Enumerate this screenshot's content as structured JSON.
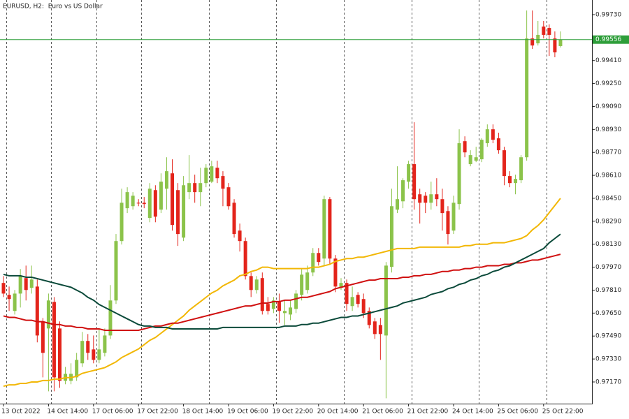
{
  "chart_data": {
    "type": "candlestick",
    "title": "EURUSD, H2:  Euro vs US Dollar",
    "categories": [
      "13 Oct 2022",
      null,
      null,
      null,
      null,
      null,
      null,
      null,
      "14 Oct 14:00",
      null,
      null,
      null,
      null,
      null,
      null,
      null,
      "17 Oct 06:00",
      null,
      null,
      null,
      null,
      null,
      null,
      null,
      "17 Oct 22:00",
      null,
      null,
      null,
      null,
      null,
      null,
      null,
      "18 Oct 14:00",
      null,
      null,
      null,
      null,
      null,
      null,
      null,
      "19 Oct 06:00",
      null,
      null,
      null,
      null,
      null,
      null,
      null,
      "19 Oct 22:00",
      null,
      null,
      null,
      null,
      null,
      null,
      null,
      "20 Oct 14:00",
      null,
      null,
      null,
      null,
      null,
      null,
      null,
      "21 Oct 06:00",
      null,
      null,
      null,
      null,
      null,
      null,
      null,
      "21 Oct 22:00",
      null,
      null,
      null,
      null,
      null,
      null,
      null,
      "24 Oct 14:00",
      null,
      null,
      null,
      null,
      null,
      null,
      null,
      "25 Oct 06:00",
      null,
      null,
      null,
      null,
      null,
      null,
      null,
      "25 Oct 22:00",
      null,
      null,
      null
    ],
    "open": [
      0.9786,
      0.97777,
      0.97665,
      0.97786,
      0.97894,
      0.97826,
      0.97835,
      0.97592,
      0.97543,
      0.97728,
      0.97543,
      0.97178,
      0.97178,
      0.97202,
      0.973,
      0.97456,
      0.97397,
      0.97324,
      0.97373,
      0.97494,
      0.97738,
      0.98152,
      0.98381,
      0.98395,
      0.98419,
      0.98419,
      0.98313,
      0.98507,
      0.98371,
      0.98517,
      0.98624,
      0.98507,
      0.98176,
      0.98493,
      0.98556,
      0.98493,
      0.98556,
      0.98566,
      0.98663,
      0.98605,
      0.98527,
      0.98419,
      0.98225,
      0.98152,
      0.97908,
      0.97811,
      0.97894,
      0.97714,
      0.97679,
      0.97728,
      0.9765,
      0.9764,
      0.97679,
      0.97777,
      0.97811,
      0.97933,
      0.98069,
      0.9803,
      0.98444,
      0.9803,
      0.97826,
      0.9786,
      0.97699,
      0.97777,
      0.97748,
      0.97665,
      0.97592,
      0.97567,
      0.97494,
      0.97972,
      0.98371,
      0.98429,
      0.98566,
      0.98688,
      0.98478,
      0.98468,
      0.98419,
      0.98478,
      0.98444,
      0.98361,
      0.98225,
      0.9841,
      0.98848,
      0.98688,
      0.98712,
      0.98722,
      0.98834,
      0.98931,
      0.98868,
      0.98785,
      0.98605,
      0.98556,
      0.98576,
      0.98736,
      0.99564,
      0.9953,
      0.99647,
      0.99637,
      0.99564,
      0.99511
    ],
    "high": [
      0.97908,
      0.97835,
      0.97811,
      0.97957,
      0.97981,
      0.97981,
      0.97884,
      0.97616,
      0.97786,
      0.97762,
      0.97592,
      0.97275,
      0.973,
      0.97373,
      0.97519,
      0.97504,
      0.97494,
      0.97543,
      0.97543,
      0.97845,
      0.98201,
      0.98517,
      0.98527,
      0.98493,
      0.98444,
      0.98459,
      0.98556,
      0.98541,
      0.98624,
      0.98736,
      0.98722,
      0.98556,
      0.98605,
      0.98751,
      0.98615,
      0.98663,
      0.98688,
      0.98712,
      0.98712,
      0.98639,
      0.98556,
      0.98444,
      0.98274,
      0.98176,
      0.97933,
      0.97908,
      0.97933,
      0.97762,
      0.97762,
      0.97786,
      0.97738,
      0.97738,
      0.97811,
      0.97957,
      0.97981,
      0.98103,
      0.98103,
      0.98468,
      0.98459,
      0.98055,
      0.97894,
      0.97884,
      0.97835,
      0.97796,
      0.97786,
      0.97689,
      0.97616,
      0.97616,
      0.98006,
      0.98517,
      0.98673,
      0.9859,
      0.98712,
      0.9898,
      0.98517,
      0.98493,
      0.98566,
      0.9859,
      0.98517,
      0.98395,
      0.98468,
      0.98931,
      0.98882,
      0.98785,
      0.98809,
      0.98868,
      0.98965,
      0.98965,
      0.98907,
      0.98809,
      0.98639,
      0.98615,
      0.98751,
      0.99759,
      0.99759,
      0.99686,
      0.99686,
      0.99662,
      0.99613,
      0.99613
    ],
    "low": [
      0.97762,
      0.97665,
      0.9764,
      0.97689,
      0.97738,
      0.97786,
      0.97446,
      0.97202,
      0.97105,
      0.97105,
      0.97129,
      0.97154,
      0.97154,
      0.97178,
      0.97275,
      0.97324,
      0.973,
      0.973,
      0.97348,
      0.9747,
      0.97714,
      0.98128,
      0.98347,
      0.98371,
      0.98395,
      0.98381,
      0.98283,
      0.98283,
      0.98347,
      0.98371,
      0.98225,
      0.98118,
      0.98152,
      0.98444,
      0.98419,
      0.98395,
      0.98527,
      0.98556,
      0.98556,
      0.98395,
      0.98371,
      0.98176,
      0.98079,
      0.97884,
      0.97762,
      0.97786,
      0.9764,
      0.9764,
      0.9765,
      0.97582,
      0.97567,
      0.97601,
      0.9765,
      0.97738,
      0.97786,
      0.97908,
      0.97981,
      0.97981,
      0.97991,
      0.97796,
      0.97811,
      0.97665,
      0.97665,
      0.97689,
      0.97616,
      0.97543,
      0.9747,
      0.97324,
      0.97056,
      0.97933,
      0.98347,
      0.98381,
      0.98517,
      0.98371,
      0.98274,
      0.98347,
      0.98371,
      0.98395,
      0.98225,
      0.98128,
      0.98201,
      0.98371,
      0.98736,
      0.98673,
      0.98702,
      0.98702,
      0.98809,
      0.98834,
      0.98761,
      0.98541,
      0.98527,
      0.98478,
      0.98556,
      0.98712,
      0.99491,
      0.99515,
      0.99564,
      0.99442,
      0.99433,
      0.99501
    ],
    "close": [
      0.97786,
      0.97748,
      0.97786,
      0.97908,
      0.97811,
      0.97884,
      0.97494,
      0.97373,
      0.97738,
      0.97202,
      0.97178,
      0.97227,
      0.97227,
      0.97324,
      0.97456,
      0.97373,
      0.97324,
      0.97397,
      0.97494,
      0.97738,
      0.98152,
      0.98419,
      0.98493,
      0.98468,
      0.98414,
      0.9841,
      0.98517,
      0.98322,
      0.98566,
      0.98639,
      0.98264,
      0.98201,
      0.98541,
      0.98556,
      0.98493,
      0.98556,
      0.98663,
      0.98673,
      0.9859,
      0.98517,
      0.98395,
      0.98201,
      0.98152,
      0.97908,
      0.97811,
      0.97884,
      0.97665,
      0.97665,
      0.97738,
      0.97665,
      0.97665,
      0.97689,
      0.97786,
      0.97918,
      0.97933,
      0.98069,
      0.98006,
      0.98444,
      0.9803,
      0.97835,
      0.9786,
      0.97714,
      0.97762,
      0.97714,
      0.9765,
      0.97567,
      0.97504,
      0.97504,
      0.97981,
      0.98395,
      0.98444,
      0.98576,
      0.98688,
      0.98444,
      0.98419,
      0.98419,
      0.98478,
      0.98444,
      0.98347,
      0.98201,
      0.98419,
      0.98834,
      0.9877,
      0.98751,
      0.98736,
      0.98858,
      0.98931,
      0.98858,
      0.98785,
      0.98605,
      0.98556,
      0.98585,
      0.98736,
      0.99564,
      0.99515,
      0.99589,
      0.99589,
      0.99589,
      0.99467,
      0.99556
    ],
    "up_color": "#8bc34a",
    "down_color": "#e3241b",
    "series": [
      {
        "color": "#f2b705",
        "values": [
          0.9714,
          0.9715,
          0.9715,
          0.9716,
          0.9716,
          0.9717,
          0.9717,
          0.9718,
          0.9718,
          0.9719,
          0.9719,
          0.972,
          0.972,
          0.9721,
          0.9723,
          0.9724,
          0.9725,
          0.9726,
          0.9727,
          0.9729,
          0.9731,
          0.9734,
          0.9736,
          0.9738,
          0.974,
          0.9743,
          0.9746,
          0.9748,
          0.9751,
          0.9754,
          0.9757,
          0.976,
          0.9763,
          0.9767,
          0.977,
          0.9773,
          0.9776,
          0.9779,
          0.9781,
          0.9784,
          0.9786,
          0.9788,
          0.9791,
          0.9792,
          0.9794,
          0.9795,
          0.9797,
          0.9797,
          0.9796,
          0.9796,
          0.9796,
          0.9796,
          0.9796,
          0.9796,
          0.9796,
          0.9797,
          0.9797,
          0.9798,
          0.9799,
          0.9801,
          0.9802,
          0.9803,
          0.9803,
          0.9804,
          0.9804,
          0.9805,
          0.9806,
          0.9807,
          0.9808,
          0.9809,
          0.981,
          0.981,
          0.981,
          0.981,
          0.9811,
          0.9811,
          0.9811,
          0.9811,
          0.9811,
          0.9811,
          0.9811,
          0.9811,
          0.9812,
          0.9812,
          0.9813,
          0.9813,
          0.9813,
          0.9814,
          0.9814,
          0.9814,
          0.9815,
          0.9816,
          0.9817,
          0.9819,
          0.9823,
          0.9826,
          0.983,
          0.9835,
          0.984,
          0.9845
        ]
      },
      {
        "color": "#d01010",
        "values": [
          0.9763,
          0.9762,
          0.9762,
          0.9761,
          0.976,
          0.976,
          0.9759,
          0.9759,
          0.9758,
          0.9757,
          0.9757,
          0.9756,
          0.9756,
          0.9755,
          0.9755,
          0.9754,
          0.9754,
          0.9754,
          0.9753,
          0.9753,
          0.9753,
          0.9753,
          0.9753,
          0.9753,
          0.9753,
          0.9754,
          0.9755,
          0.9756,
          0.9756,
          0.9757,
          0.9758,
          0.9758,
          0.9759,
          0.976,
          0.9761,
          0.9762,
          0.9763,
          0.9764,
          0.9765,
          0.9766,
          0.9767,
          0.9768,
          0.9769,
          0.977,
          0.977,
          0.9771,
          0.9772,
          0.9772,
          0.9773,
          0.9773,
          0.9774,
          0.9774,
          0.9775,
          0.9776,
          0.9776,
          0.9777,
          0.9778,
          0.9779,
          0.978,
          0.9782,
          0.9783,
          0.9784,
          0.9785,
          0.9786,
          0.9787,
          0.9788,
          0.9788,
          0.9789,
          0.9789,
          0.9789,
          0.9789,
          0.979,
          0.979,
          0.9791,
          0.9791,
          0.9792,
          0.9792,
          0.9793,
          0.9794,
          0.9794,
          0.9795,
          0.9795,
          0.9796,
          0.9796,
          0.9797,
          0.9797,
          0.9798,
          0.9798,
          0.9798,
          0.9799,
          0.9799,
          0.98,
          0.98,
          0.9801,
          0.9802,
          0.9802,
          0.9803,
          0.9804,
          0.9805,
          0.9806
        ]
      },
      {
        "color": "#0b4a3a",
        "values": [
          0.9792,
          0.9791,
          0.9791,
          0.9791,
          0.979,
          0.979,
          0.9789,
          0.9788,
          0.9787,
          0.9786,
          0.9785,
          0.9784,
          0.9783,
          0.9781,
          0.9779,
          0.9776,
          0.9774,
          0.9771,
          0.9769,
          0.9767,
          0.9765,
          0.9763,
          0.9761,
          0.9759,
          0.9757,
          0.9756,
          0.9756,
          0.9755,
          0.9755,
          0.9755,
          0.9754,
          0.9754,
          0.9754,
          0.9754,
          0.9754,
          0.9754,
          0.9754,
          0.9754,
          0.9754,
          0.9755,
          0.9755,
          0.9755,
          0.9755,
          0.9755,
          0.9755,
          0.9755,
          0.9755,
          0.9755,
          0.9755,
          0.9755,
          0.9756,
          0.9756,
          0.9756,
          0.9757,
          0.9757,
          0.9758,
          0.9758,
          0.9759,
          0.976,
          0.9761,
          0.9762,
          0.9762,
          0.9763,
          0.9763,
          0.9764,
          0.9765,
          0.9766,
          0.9767,
          0.9768,
          0.9769,
          0.977,
          0.9772,
          0.9773,
          0.9774,
          0.9775,
          0.9776,
          0.9778,
          0.9779,
          0.978,
          0.9782,
          0.9783,
          0.9785,
          0.9786,
          0.9788,
          0.9789,
          0.9791,
          0.9792,
          0.9794,
          0.9795,
          0.9797,
          0.9798,
          0.98,
          0.9802,
          0.9804,
          0.9806,
          0.9808,
          0.981,
          0.9814,
          0.9817,
          0.982
        ]
      }
    ],
    "current_price": 0.99556,
    "current_color": "#2e9e3a",
    "ylim": [
      0.97019,
      0.99832
    ],
    "yticks": [
      {
        "value": 0.9717,
        "label": "0.97170"
      },
      {
        "value": 0.9733,
        "label": "0.97330"
      },
      {
        "value": 0.9749,
        "label": "0.97490"
      },
      {
        "value": 0.9765,
        "label": "0.97650"
      },
      {
        "value": 0.9781,
        "label": "0.97810"
      },
      {
        "value": 0.9797,
        "label": "0.97970"
      },
      {
        "value": 0.9813,
        "label": "0.98130"
      },
      {
        "value": 0.9829,
        "label": "0.98290"
      },
      {
        "value": 0.9845,
        "label": "0.98450"
      },
      {
        "value": 0.9861,
        "label": "0.98610"
      },
      {
        "value": 0.9877,
        "label": "0.98770"
      },
      {
        "value": 0.9893,
        "label": "0.98930"
      },
      {
        "value": 0.9909,
        "label": "0.99090"
      },
      {
        "value": 0.9925,
        "label": "0.99250"
      },
      {
        "value": 0.9941,
        "label": "0.99410"
      },
      {
        "value": 0.9973,
        "label": "0.99730"
      }
    ]
  }
}
